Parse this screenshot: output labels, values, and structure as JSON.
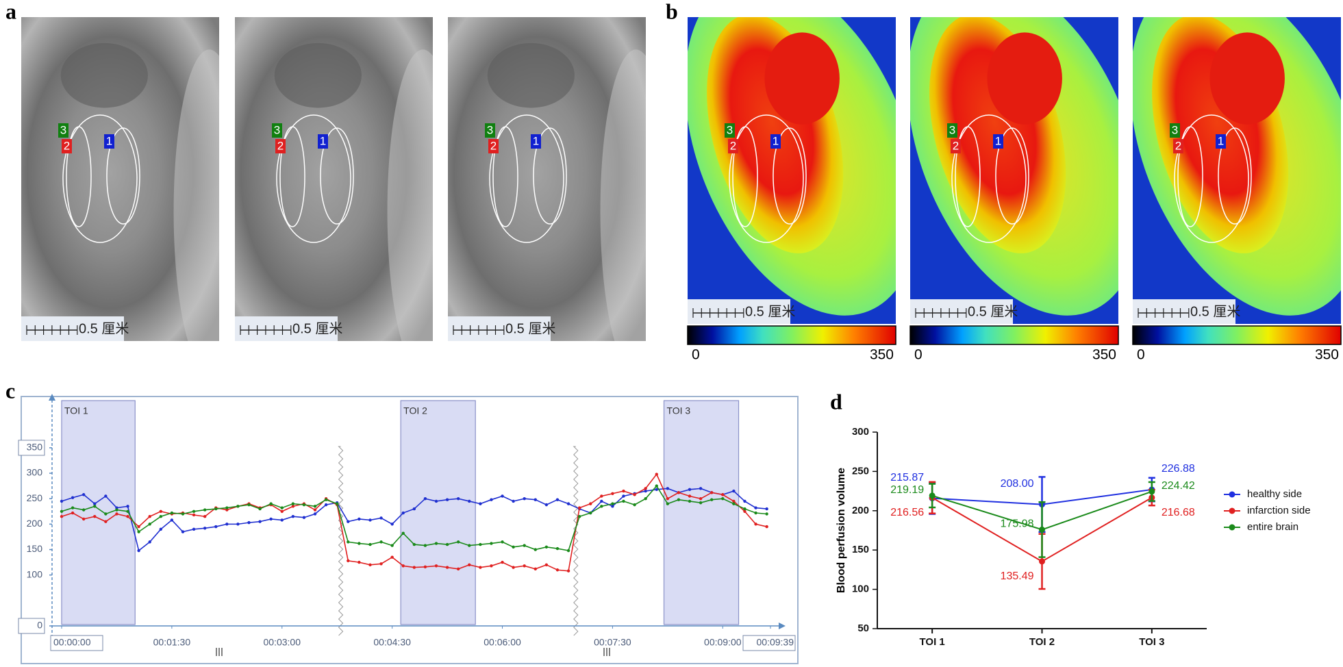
{
  "panel_labels": [
    "a",
    "b",
    "c",
    "d"
  ],
  "panel_a": {
    "images": [
      {
        "scale_label": "0.5 厘米",
        "roi_labels": [
          "1",
          "2",
          "3"
        ]
      },
      {
        "scale_label": "0.5 厘米",
        "roi_labels": [
          "1",
          "2",
          "3"
        ]
      },
      {
        "scale_label": "0.5 厘米",
        "roi_labels": [
          "1",
          "2",
          "3"
        ]
      }
    ]
  },
  "panel_b": {
    "images": [
      {
        "scale_label": "0.5 厘米",
        "roi_labels": [
          "1",
          "2",
          "3"
        ],
        "colorbar": {
          "min": 0,
          "max": 350
        }
      },
      {
        "scale_label": "0.5 厘米",
        "roi_labels": [
          "1",
          "2",
          "3"
        ],
        "colorbar": {
          "min": 0,
          "max": 350
        }
      },
      {
        "scale_label": "0.5 厘米",
        "roi_labels": [
          "1",
          "2",
          "3"
        ],
        "colorbar": {
          "min": 0,
          "max": 350
        }
      }
    ]
  },
  "chart_data": [
    {
      "type": "line",
      "x": [
        0,
        9,
        18,
        27,
        36,
        45,
        54,
        63,
        72,
        81,
        90,
        99,
        108,
        117,
        126,
        135,
        144,
        153,
        162,
        171,
        180,
        189,
        198,
        207,
        216,
        225,
        234,
        243,
        252,
        261,
        270,
        279,
        288,
        297,
        306,
        315,
        324,
        333,
        342,
        351,
        360,
        369,
        378,
        387,
        396,
        405,
        414,
        423,
        432,
        441,
        450,
        459,
        468,
        477,
        486,
        495,
        504,
        513,
        522,
        531,
        540,
        549,
        558,
        567,
        576
      ],
      "xlim": [
        0,
        579
      ],
      "xticks": [
        {
          "value": 0,
          "label": "00:00:00"
        },
        {
          "value": 90,
          "label": "00:01:30"
        },
        {
          "value": 180,
          "label": "00:03:00"
        },
        {
          "value": 270,
          "label": "00:04:30"
        },
        {
          "value": 360,
          "label": "00:06:00"
        },
        {
          "value": 450,
          "label": "00:07:30"
        },
        {
          "value": 540,
          "label": "00:09:00"
        },
        {
          "value": 579,
          "label": "00:09:39"
        }
      ],
      "ylim": [
        0,
        440
      ],
      "yticks": [
        0,
        100,
        150,
        200,
        250,
        300,
        350
      ],
      "regions": [
        {
          "label": "TOI 1",
          "start": 0,
          "end": 60
        },
        {
          "label": "TOI 2",
          "start": 277,
          "end": 338
        },
        {
          "label": "TOI 3",
          "start": 492,
          "end": 553
        }
      ],
      "segment_marks": [
        228,
        420
      ],
      "series": [
        {
          "color": "#1f2fd0",
          "values": [
            245,
            252,
            258,
            240,
            255,
            232,
            235,
            148,
            165,
            190,
            208,
            185,
            190,
            192,
            195,
            200,
            200,
            203,
            205,
            210,
            208,
            215,
            213,
            220,
            238,
            242,
            205,
            210,
            208,
            212,
            200,
            222,
            230,
            250,
            245,
            248,
            250,
            245,
            240,
            248,
            255,
            245,
            250,
            248,
            238,
            248,
            240,
            230,
            222,
            245,
            235,
            255,
            260,
            265,
            268,
            270,
            262,
            268,
            270,
            262,
            258,
            265,
            245,
            232,
            230
          ]
        },
        {
          "color": "#e02020",
          "values": [
            215,
            222,
            210,
            215,
            205,
            220,
            215,
            195,
            215,
            225,
            220,
            222,
            218,
            215,
            232,
            228,
            235,
            240,
            232,
            238,
            225,
            235,
            240,
            228,
            250,
            238,
            128,
            125,
            120,
            122,
            135,
            118,
            115,
            116,
            118,
            115,
            112,
            120,
            115,
            118,
            125,
            115,
            118,
            112,
            120,
            110,
            108,
            232,
            240,
            255,
            260,
            265,
            258,
            270,
            298,
            250,
            262,
            255,
            250,
            262,
            258,
            245,
            225,
            200,
            195
          ]
        },
        {
          "color": "#1a8a1a",
          "values": [
            225,
            232,
            228,
            235,
            220,
            228,
            225,
            185,
            200,
            215,
            222,
            220,
            225,
            228,
            230,
            232,
            235,
            238,
            230,
            240,
            232,
            240,
            238,
            235,
            248,
            240,
            165,
            162,
            160,
            165,
            158,
            182,
            160,
            158,
            162,
            160,
            165,
            158,
            160,
            162,
            165,
            155,
            158,
            150,
            155,
            152,
            148,
            215,
            222,
            235,
            240,
            245,
            238,
            250,
            275,
            240,
            248,
            245,
            242,
            248,
            250,
            240,
            230,
            222,
            220
          ]
        }
      ]
    },
    {
      "type": "line",
      "y_label": "Blood perfusion volume",
      "categories": [
        "TOI 1",
        "TOI 2",
        "TOI 3"
      ],
      "ylim": [
        50,
        300
      ],
      "yticks": [
        50,
        100,
        150,
        200,
        250,
        300
      ],
      "legend": "right",
      "series": [
        {
          "name": "healthy side",
          "color": "#1f2fe0",
          "values": [
            215.87,
            208.0,
            226.88
          ],
          "value_labels": [
            "215.87",
            "208.00",
            "226.88"
          ],
          "errors": [
            20,
            35,
            15
          ]
        },
        {
          "name": "infarction side",
          "color": "#e02020",
          "values": [
            216.56,
            135.49,
            216.68
          ],
          "value_labels": [
            "216.56",
            "135.49",
            "216.68"
          ],
          "errors": [
            20,
            35,
            10
          ]
        },
        {
          "name": "entire brain",
          "color": "#1a8a1a",
          "values": [
            219.19,
            175.98,
            224.42
          ],
          "value_labels": [
            "219.19",
            "175.98",
            "224.42"
          ],
          "errors": [
            15,
            35,
            12
          ]
        }
      ]
    }
  ]
}
